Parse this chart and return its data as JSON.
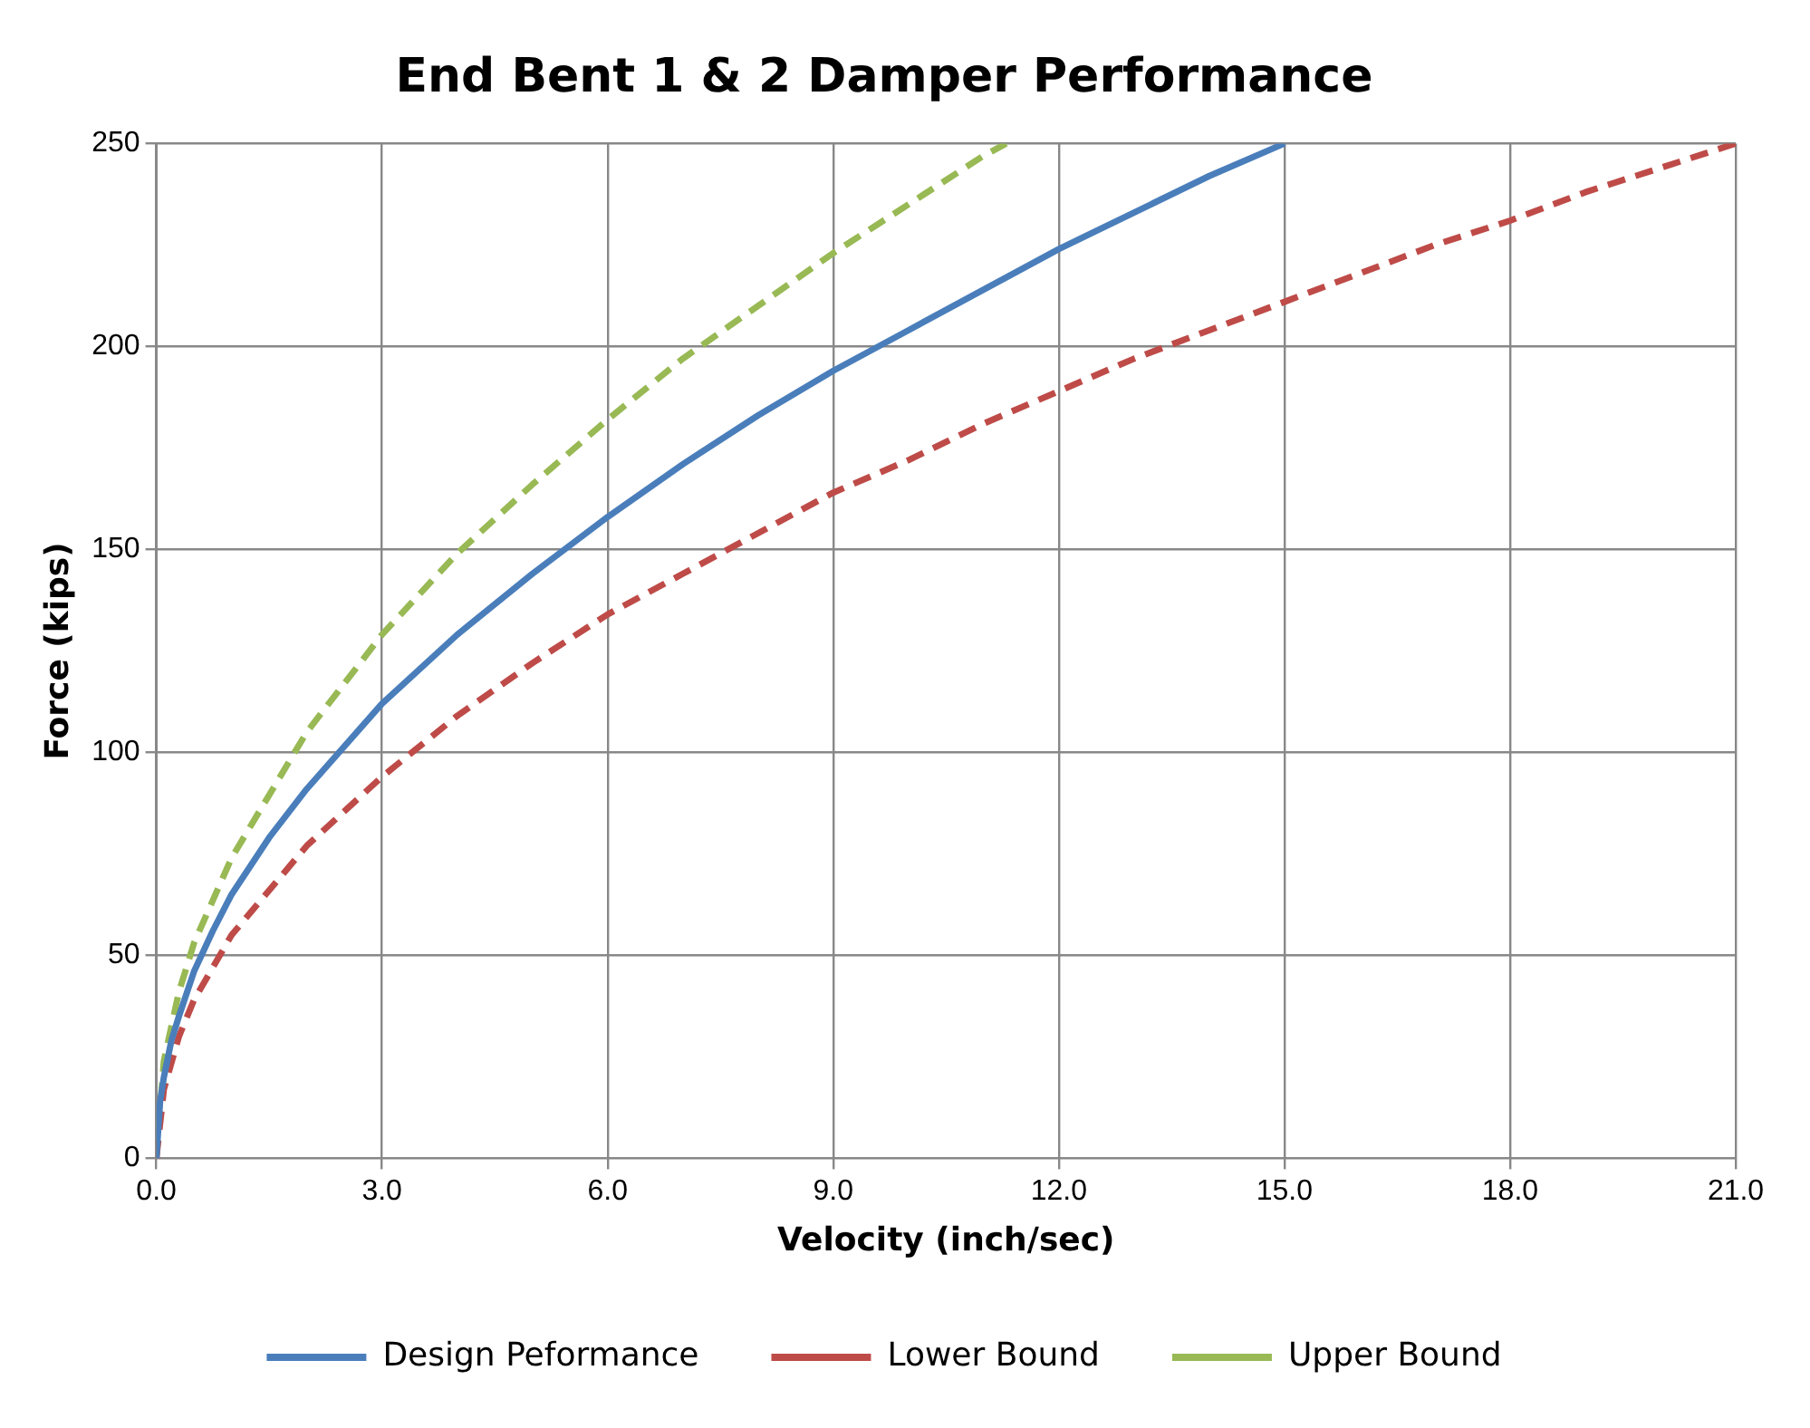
{
  "chart_data": {
    "type": "line",
    "title": "End Bent 1 & 2 Damper Performance",
    "xlabel": "Velocity (inch/sec)",
    "ylabel": "Force (kips)",
    "xlim": [
      0,
      21
    ],
    "xticks": [
      {
        "value": 0,
        "label": "0.0"
      },
      {
        "value": 3,
        "label": "3.0"
      },
      {
        "value": 6,
        "label": "6.0"
      },
      {
        "value": 9,
        "label": "9.0"
      },
      {
        "value": 12,
        "label": "12.0"
      },
      {
        "value": 15,
        "label": "15.0"
      },
      {
        "value": 18,
        "label": "18.0"
      },
      {
        "value": 21,
        "label": "21.0"
      }
    ],
    "ylim": [
      0,
      250
    ],
    "yticks": [
      0,
      50,
      100,
      150,
      200,
      250
    ],
    "grid": true,
    "legend": "bottom",
    "marker": "none",
    "series": [
      {
        "name": "Design Peformance",
        "color": "#4a7ebb",
        "line_style": "solid",
        "x": [
          0,
          0.05,
          0.1,
          0.2,
          0.3,
          0.5,
          0.75,
          1,
          1.5,
          2,
          3,
          4,
          5,
          6,
          7,
          8,
          9,
          10,
          11,
          12,
          13,
          14,
          15
        ],
        "values": [
          0,
          14,
          20,
          29,
          35,
          46,
          56,
          65,
          79,
          91,
          112,
          129,
          144,
          158,
          171,
          183,
          194,
          204,
          214,
          224,
          233,
          242,
          250
        ]
      },
      {
        "name": "Lower Bound",
        "color": "#be4b48",
        "line_style": "dashed",
        "x": [
          0,
          0.1,
          0.3,
          0.5,
          1,
          2,
          3,
          4,
          5,
          6,
          7,
          8,
          9,
          10,
          11,
          12,
          13,
          14,
          15,
          16,
          17,
          18,
          19,
          20,
          21
        ],
        "values": [
          0,
          17,
          30,
          39,
          55,
          77,
          94,
          109,
          122,
          134,
          144,
          154,
          164,
          172,
          181,
          189,
          197,
          204,
          211,
          218,
          225,
          231,
          238,
          244,
          250
        ]
      },
      {
        "name": "Upper Bound",
        "color": "#98b954",
        "line_style": "dashed",
        "x": [
          0,
          0.1,
          0.3,
          0.5,
          1,
          2,
          3,
          4,
          5,
          6,
          7,
          8,
          9,
          10,
          11,
          11.3
        ],
        "values": [
          0,
          24,
          41,
          53,
          74,
          105,
          129,
          149,
          166,
          182,
          197,
          210,
          223,
          235,
          247,
          250
        ]
      }
    ]
  }
}
